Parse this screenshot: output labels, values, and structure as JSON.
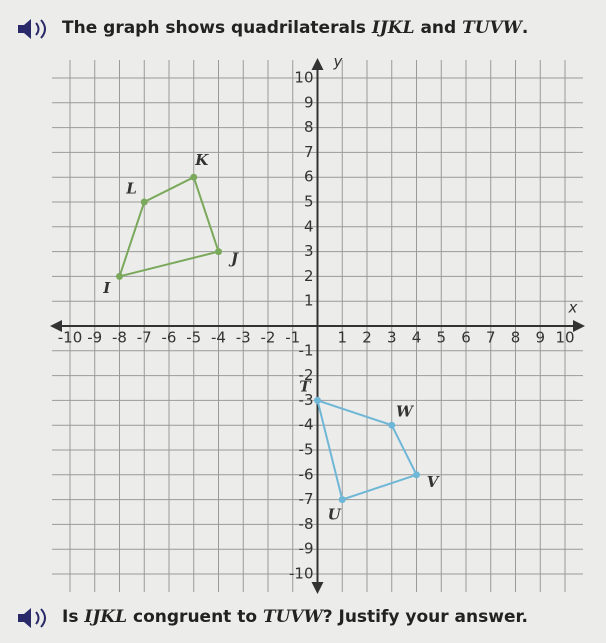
{
  "header": {
    "parts": [
      "The graph shows quadrilaterals ",
      "IJKL",
      " and ",
      "TUVW",
      "."
    ]
  },
  "question": {
    "parts": [
      "Is ",
      "IJKL",
      " congruent to ",
      "TUVW",
      "? Justify your answer."
    ]
  },
  "chart_data": {
    "type": "polygon",
    "x_label": "x",
    "y_label": "y",
    "xlim": [
      -10,
      10
    ],
    "ylim": [
      -10,
      10
    ],
    "xticks": [
      -10,
      -9,
      -8,
      -7,
      -6,
      -5,
      -4,
      -3,
      -2,
      -1,
      1,
      2,
      3,
      4,
      5,
      6,
      7,
      8,
      9,
      10
    ],
    "yticks": [
      -10,
      -9,
      -8,
      -7,
      -6,
      -5,
      -4,
      -3,
      -2,
      -1,
      1,
      2,
      3,
      4,
      5,
      6,
      7,
      8,
      9,
      10
    ],
    "grid": true,
    "series": [
      {
        "color": "#7aa95c",
        "labels": [
          "I",
          "J",
          "K",
          "L"
        ],
        "x": [
          -8,
          -4,
          -5,
          -7
        ],
        "y": [
          2,
          3,
          6,
          5
        ]
      },
      {
        "color": "#6fb7d6",
        "labels": [
          "T",
          "U",
          "V",
          "W"
        ],
        "x": [
          0,
          1,
          4,
          3
        ],
        "y": [
          -3,
          -7,
          -6,
          -4
        ]
      }
    ]
  }
}
